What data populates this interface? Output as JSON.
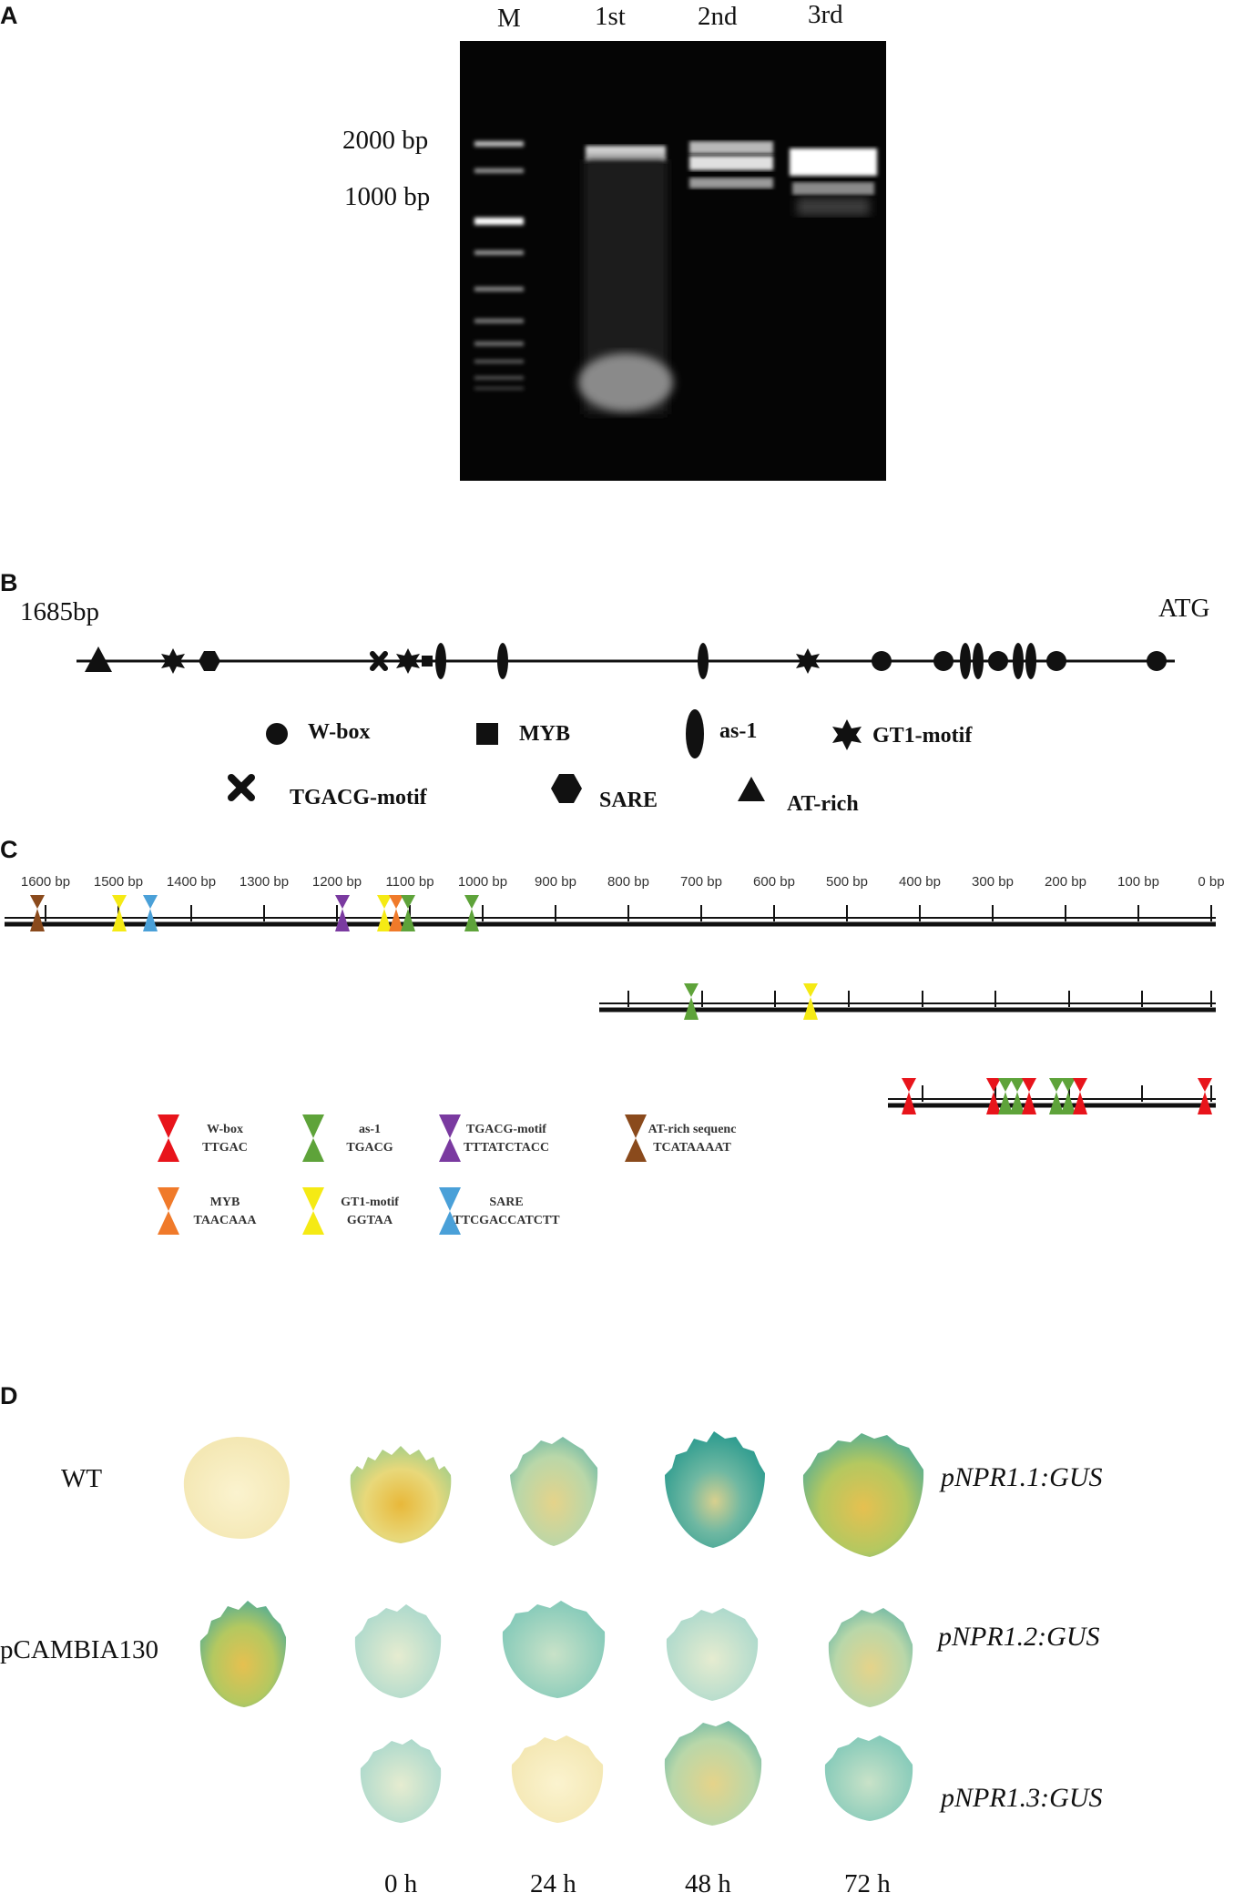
{
  "panels": {
    "a": "A",
    "b": "B",
    "c": "C",
    "d": "D"
  },
  "gel": {
    "lanes": [
      "M",
      "1st",
      "2nd",
      "3rd"
    ],
    "markers": [
      "2000 bp",
      "1000 bp"
    ]
  },
  "promoter_map": {
    "start_label": "1685bp",
    "end_label": "ATG",
    "legend": {
      "wbox": "W-box",
      "myb": "MYB",
      "as1": "as-1",
      "gt1": "GT1-motif",
      "tgacg": "TGACG-motif",
      "sare": "SARE",
      "atrich": "AT-rich"
    }
  },
  "scale_map": {
    "ticks": [
      "1600 bp",
      "1500 bp",
      "1400 bp",
      "1300 bp",
      "1200 bp",
      "1100 bp",
      "1000 bp",
      "900 bp",
      "800 bp",
      "700 bp",
      "600 bp",
      "500 bp",
      "400 bp",
      "300 bp",
      "200 bp",
      "100 bp",
      "0 bp"
    ],
    "legend": [
      {
        "name": "W-box",
        "seq": "TTGAC",
        "color": "#e8141b"
      },
      {
        "name": "as-1",
        "seq": "TGACG",
        "color": "#5ea33a"
      },
      {
        "name": "TGACG-motif",
        "seq": "TTTATCTACC",
        "color": "#7a3aa0"
      },
      {
        "name": "AT-rich sequenc",
        "seq": "TCATAAAAT",
        "color": "#8a4a1c"
      },
      {
        "name": "MYB",
        "seq": "TAACAAA",
        "color": "#f07a2a"
      },
      {
        "name": "GT1-motif",
        "seq": "GGTAA",
        "color": "#f5ea14"
      },
      {
        "name": "SARE",
        "seq": "TTCGACCATCTT",
        "color": "#4aa0d8"
      }
    ]
  },
  "gus": {
    "rows": [
      "WT",
      "pCAMBIA130"
    ],
    "constructs": [
      "pNPR1.1:GUS",
      "pNPR1.2:GUS",
      "pNPR1.3:GUS"
    ],
    "times": [
      "0 h",
      "24 h",
      "48 h",
      "72 h"
    ]
  }
}
